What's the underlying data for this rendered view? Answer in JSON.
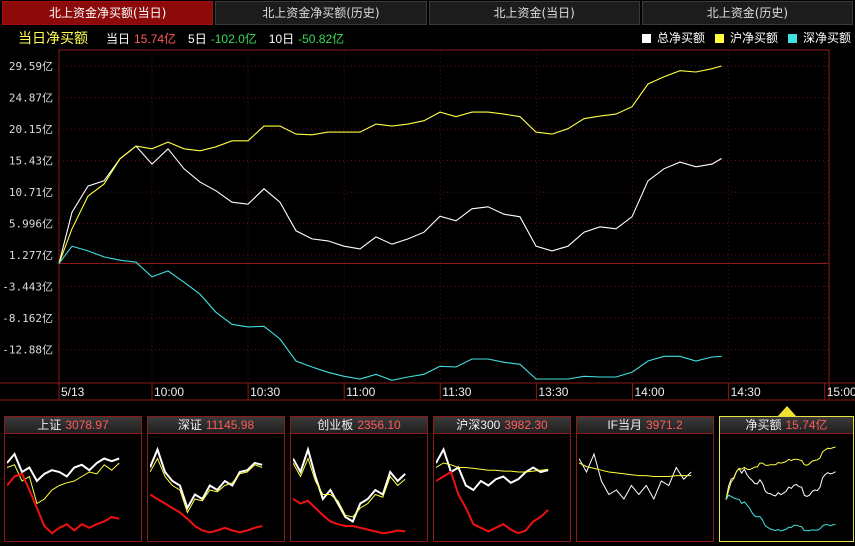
{
  "tabs": [
    {
      "label": "北上资金净买额(当日)",
      "active": true
    },
    {
      "label": "北上资金净买额(历史)"
    },
    {
      "label": "北上资金(当日)"
    },
    {
      "label": "北上资金(历史)"
    }
  ],
  "stats": {
    "title": "当日净买额",
    "today_label": "当日",
    "today_value": "15.74亿",
    "d5_label": "5日",
    "d5_value": "-102.0亿",
    "d10_label": "10日",
    "d10_value": "-50.82亿"
  },
  "legend": [
    {
      "label": "总净买额",
      "color": "#ffffff"
    },
    {
      "label": "沪净买额",
      "color": "#ffff40"
    },
    {
      "label": "深净买额",
      "color": "#40e0e0"
    }
  ],
  "chart_data": {
    "type": "line",
    "y_ticks": [
      "29.59亿",
      "24.87亿",
      "20.15亿",
      "15.43亿",
      "10.71亿",
      "5.996亿",
      "1.277亿",
      "-3.443亿",
      "-8.162亿",
      "-12.88亿"
    ],
    "y_tick_values": [
      29.59,
      24.87,
      20.15,
      15.43,
      10.71,
      5.996,
      1.277,
      -3.443,
      -8.162,
      -12.88
    ],
    "ylim": [
      -17.9,
      32
    ],
    "x_ticks": [
      "5/13",
      "10:00",
      "10:30",
      "11:00",
      "11:30",
      "13:30",
      "14:00",
      "14:30",
      "15:00"
    ],
    "x": [
      "09:30",
      "09:35",
      "09:40",
      "09:45",
      "09:50",
      "09:55",
      "10:00",
      "10:05",
      "10:10",
      "10:15",
      "10:20",
      "10:25",
      "10:30",
      "10:35",
      "10:40",
      "10:45",
      "10:50",
      "10:55",
      "11:00",
      "11:05",
      "11:10",
      "11:15",
      "11:20",
      "11:25",
      "11:30",
      "13:05",
      "13:10",
      "13:15",
      "13:20",
      "13:25",
      "13:30",
      "13:35",
      "13:40",
      "13:45",
      "13:50",
      "13:55",
      "14:00",
      "14:05",
      "14:10",
      "14:15",
      "14:20",
      "14:25",
      "14:28"
    ],
    "series": [
      {
        "name": "总净买额",
        "color": "#ffffff",
        "values": [
          0,
          7.7,
          11.6,
          12.4,
          15.7,
          17.6,
          14.9,
          17.2,
          14.2,
          12.2,
          10.9,
          9.2,
          8.9,
          11.2,
          9.2,
          4.9,
          3.7,
          3.4,
          2.6,
          2.2,
          4.0,
          2.9,
          3.7,
          4.7,
          7.1,
          6.4,
          8.2,
          8.5,
          7.4,
          7.0,
          2.6,
          1.9,
          2.6,
          4.7,
          5.5,
          5.2,
          7.0,
          12.4,
          14.2,
          15.2,
          14.5,
          14.9,
          15.74
        ]
      },
      {
        "name": "沪净买额",
        "color": "#ffff40",
        "values": [
          0,
          5.2,
          10.1,
          11.9,
          15.7,
          17.6,
          17.2,
          18.2,
          17.2,
          16.9,
          17.5,
          18.4,
          18.4,
          20.6,
          20.6,
          19.4,
          19.3,
          19.7,
          19.7,
          19.7,
          20.9,
          20.6,
          20.9,
          21.4,
          22.7,
          22.0,
          22.7,
          22.7,
          22.4,
          22.0,
          19.7,
          19.4,
          20.2,
          21.7,
          22.1,
          22.4,
          23.5,
          26.9,
          28.0,
          28.9,
          28.7,
          29.2,
          29.6
        ]
      },
      {
        "name": "深净买额",
        "color": "#40e0e0",
        "values": [
          0,
          2.6,
          1.9,
          1.0,
          0.5,
          0.2,
          -2.0,
          -1.1,
          -2.8,
          -4.6,
          -7.3,
          -9.1,
          -9.5,
          -9.4,
          -11.3,
          -14.6,
          -15.5,
          -16.3,
          -16.9,
          -17.3,
          -16.6,
          -17.5,
          -17.0,
          -16.6,
          -15.4,
          -15.5,
          -14.3,
          -14.3,
          -14.8,
          -15.1,
          -17.3,
          -17.3,
          -17.3,
          -16.9,
          -17.0,
          -17.0,
          -16.3,
          -14.6,
          -13.9,
          -13.9,
          -14.6,
          -14.0,
          -13.9
        ]
      }
    ]
  },
  "minis": [
    {
      "label": "上证",
      "value": "3078.97",
      "lines": [
        {
          "color": "#ffffff",
          "w": 2,
          "values": [
            80,
            90,
            70,
            75,
            60,
            68,
            72,
            70,
            65,
            75,
            78,
            72,
            80,
            85,
            82,
            85
          ]
        },
        {
          "color": "#ffff40",
          "w": 1,
          "values": [
            75,
            78,
            60,
            65,
            35,
            40,
            50,
            55,
            58,
            60,
            65,
            70,
            68,
            78,
            72,
            80
          ]
        },
        {
          "color": "#ee1111",
          "w": 2,
          "values": [
            55,
            65,
            68,
            50,
            30,
            10,
            2,
            8,
            12,
            5,
            12,
            8,
            12,
            15,
            20,
            18
          ]
        }
      ]
    },
    {
      "label": "深证",
      "value": "11145.98",
      "lines": [
        {
          "color": "#ffffff",
          "w": 2,
          "values": [
            75,
            95,
            70,
            60,
            55,
            30,
            45,
            40,
            55,
            50,
            60,
            55,
            70,
            72,
            80,
            78
          ]
        },
        {
          "color": "#ffff40",
          "w": 1,
          "values": [
            70,
            85,
            65,
            55,
            50,
            25,
            40,
            38,
            50,
            48,
            55,
            58,
            68,
            70,
            78,
            75
          ]
        },
        {
          "color": "#ee1111",
          "w": 2,
          "values": [
            45,
            40,
            35,
            30,
            25,
            18,
            10,
            5,
            3,
            5,
            8,
            5,
            3,
            5,
            8,
            10
          ]
        }
      ]
    },
    {
      "label": "创业板",
      "value": "2356.10",
      "lines": [
        {
          "color": "#ffffff",
          "w": 2,
          "values": [
            85,
            70,
            95,
            65,
            40,
            50,
            35,
            20,
            15,
            35,
            40,
            50,
            45,
            70,
            60,
            68
          ]
        },
        {
          "color": "#ffff40",
          "w": 1,
          "values": [
            80,
            65,
            85,
            60,
            45,
            45,
            38,
            22,
            20,
            30,
            35,
            45,
            42,
            65,
            55,
            62
          ]
        },
        {
          "color": "#ee1111",
          "w": 2,
          "values": [
            40,
            35,
            38,
            30,
            22,
            15,
            12,
            10,
            10,
            8,
            6,
            4,
            2,
            3,
            5,
            4
          ]
        }
      ]
    },
    {
      "label": "沪深300",
      "value": "3982.30",
      "lines": [
        {
          "color": "#ffffff",
          "w": 2,
          "values": [
            80,
            95,
            70,
            75,
            55,
            50,
            60,
            55,
            62,
            65,
            58,
            62,
            70,
            75,
            70,
            72
          ]
        },
        {
          "color": "#ffff40",
          "w": 1,
          "values": [
            75,
            80,
            78,
            75,
            75,
            74,
            73,
            72,
            72,
            71,
            71,
            70,
            70,
            71,
            72,
            73
          ]
        },
        {
          "color": "#ee1111",
          "w": 2,
          "values": [
            60,
            65,
            70,
            45,
            30,
            12,
            8,
            4,
            8,
            12,
            6,
            2,
            5,
            15,
            20,
            28
          ]
        }
      ]
    },
    {
      "label": "IF当月",
      "value": "3971.2",
      "lines": [
        {
          "color": "#ffffff",
          "w": 1,
          "values": [
            85,
            70,
            90,
            60,
            45,
            50,
            40,
            55,
            45,
            55,
            40,
            60,
            55,
            75,
            62,
            70
          ]
        },
        {
          "color": "#ffff40",
          "w": 1,
          "values": [
            80,
            76,
            74,
            72,
            70,
            69,
            68,
            67,
            66,
            66,
            65,
            65,
            65,
            66,
            66,
            66
          ]
        }
      ]
    },
    {
      "label": "净买额",
      "value": "15.74亿",
      "selected": true
    }
  ]
}
